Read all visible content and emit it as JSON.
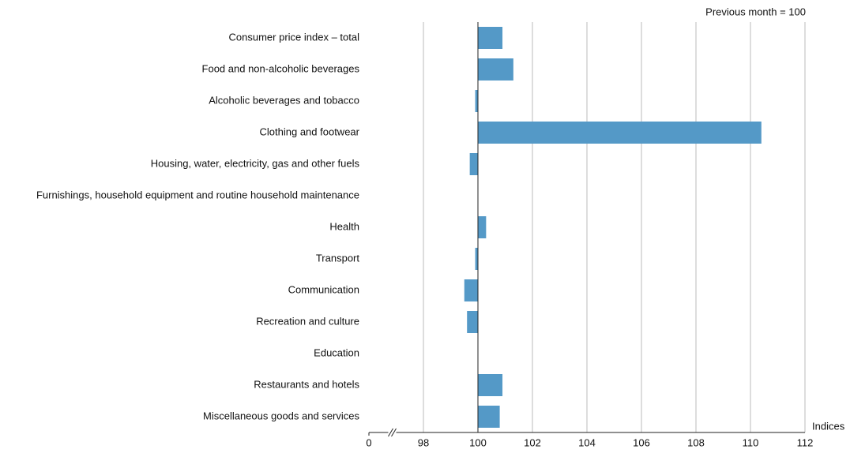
{
  "chart_data": {
    "type": "hbar",
    "subtitle": "Previous month = 100",
    "x_label": "Indices",
    "categories": [
      "Consumer price index – total",
      "Food and non-alcoholic beverages",
      "Alcoholic beverages and tobacco",
      "Clothing and footwear",
      "Housing, water, electricity, gas and other fuels",
      "Furnishings, household equipment and routine household maintenance",
      "Health",
      "Transport",
      "Communication",
      "Recreation and culture",
      "Education",
      "Restaurants and hotels",
      "Miscellaneous goods and services"
    ],
    "values": [
      100.9,
      101.3,
      99.9,
      110.4,
      99.7,
      100,
      100.3,
      99.9,
      99.5,
      99.6,
      100,
      100.9,
      100.8
    ],
    "base": 100,
    "color": "#5499c7",
    "xlim": [
      0,
      112
    ],
    "xticks": [
      0,
      98,
      100,
      102,
      104,
      106,
      108,
      110,
      112
    ],
    "axis_break": true,
    "grid": true
  }
}
